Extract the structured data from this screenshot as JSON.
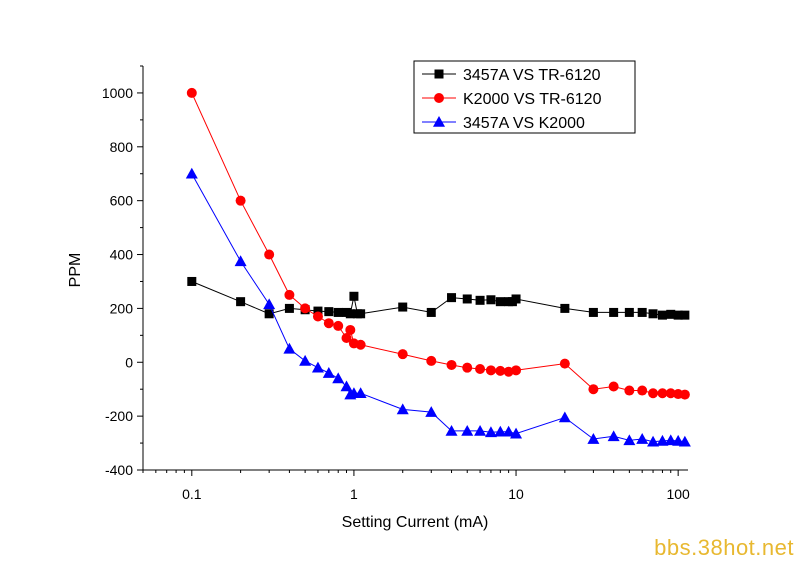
{
  "chart_data": {
    "type": "line",
    "title": "",
    "xlabel": "Setting Current (mA)",
    "ylabel": "PPM",
    "xscale": "log",
    "xlim": [
      0.05,
      115
    ],
    "ylim": [
      -400,
      1100
    ],
    "x_ticks": [
      0.1,
      1,
      10,
      100
    ],
    "x_tick_labels": [
      "0.1",
      "1",
      "10",
      "100"
    ],
    "y_ticks": [
      -400,
      -200,
      0,
      200,
      400,
      600,
      800,
      1000
    ],
    "y_tick_labels": [
      "-400",
      "-200",
      "0",
      "200",
      "400",
      "600",
      "800",
      "1000"
    ],
    "grid": false,
    "legend_position": "top-right",
    "series": [
      {
        "name": "3457A VS TR-6120",
        "color": "#000000",
        "marker": "square",
        "x": [
          0.1,
          0.2,
          0.3,
          0.4,
          0.5,
          0.6,
          0.7,
          0.8,
          0.9,
          0.95,
          1.0,
          1.05,
          1.1,
          2,
          3,
          4,
          5,
          6,
          7,
          8,
          9,
          9.5,
          10,
          20,
          30,
          40,
          50,
          60,
          70,
          80,
          90,
          100,
          110
        ],
        "y": [
          300,
          225,
          180,
          200,
          195,
          190,
          188,
          185,
          185,
          180,
          245,
          180,
          180,
          205,
          185,
          240,
          235,
          230,
          232,
          225,
          225,
          225,
          235,
          200,
          185,
          185,
          185,
          185,
          180,
          175,
          178,
          175,
          175
        ]
      },
      {
        "name": "K2000 VS TR-6120",
        "color": "#ff0000",
        "marker": "circle",
        "x": [
          0.1,
          0.2,
          0.3,
          0.4,
          0.5,
          0.6,
          0.7,
          0.8,
          0.9,
          0.95,
          1.0,
          1.1,
          2,
          3,
          4,
          5,
          6,
          7,
          8,
          9,
          10,
          20,
          30,
          40,
          50,
          60,
          70,
          80,
          90,
          100,
          110
        ],
        "y": [
          1000,
          600,
          400,
          250,
          200,
          170,
          145,
          135,
          90,
          120,
          70,
          65,
          30,
          5,
          -10,
          -20,
          -25,
          -30,
          -32,
          -35,
          -30,
          -5,
          -100,
          -90,
          -105,
          -105,
          -115,
          -115,
          -115,
          -118,
          -120
        ]
      },
      {
        "name": "3457A VS K2000",
        "color": "#0000ff",
        "marker": "triangle",
        "x": [
          0.1,
          0.2,
          0.3,
          0.4,
          0.5,
          0.6,
          0.7,
          0.8,
          0.9,
          0.95,
          1.0,
          1.1,
          2,
          3,
          4,
          5,
          6,
          7,
          8,
          9,
          10,
          20,
          30,
          40,
          50,
          60,
          70,
          80,
          90,
          100,
          110
        ],
        "y": [
          700,
          375,
          215,
          50,
          5,
          -20,
          -40,
          -60,
          -90,
          -120,
          -115,
          -115,
          -175,
          -185,
          -255,
          -255,
          -255,
          -260,
          -258,
          -258,
          -265,
          -205,
          -285,
          -275,
          -290,
          -285,
          -295,
          -292,
          -290,
          -292,
          -295
        ]
      }
    ]
  },
  "watermark": "bbs.38hot.net"
}
